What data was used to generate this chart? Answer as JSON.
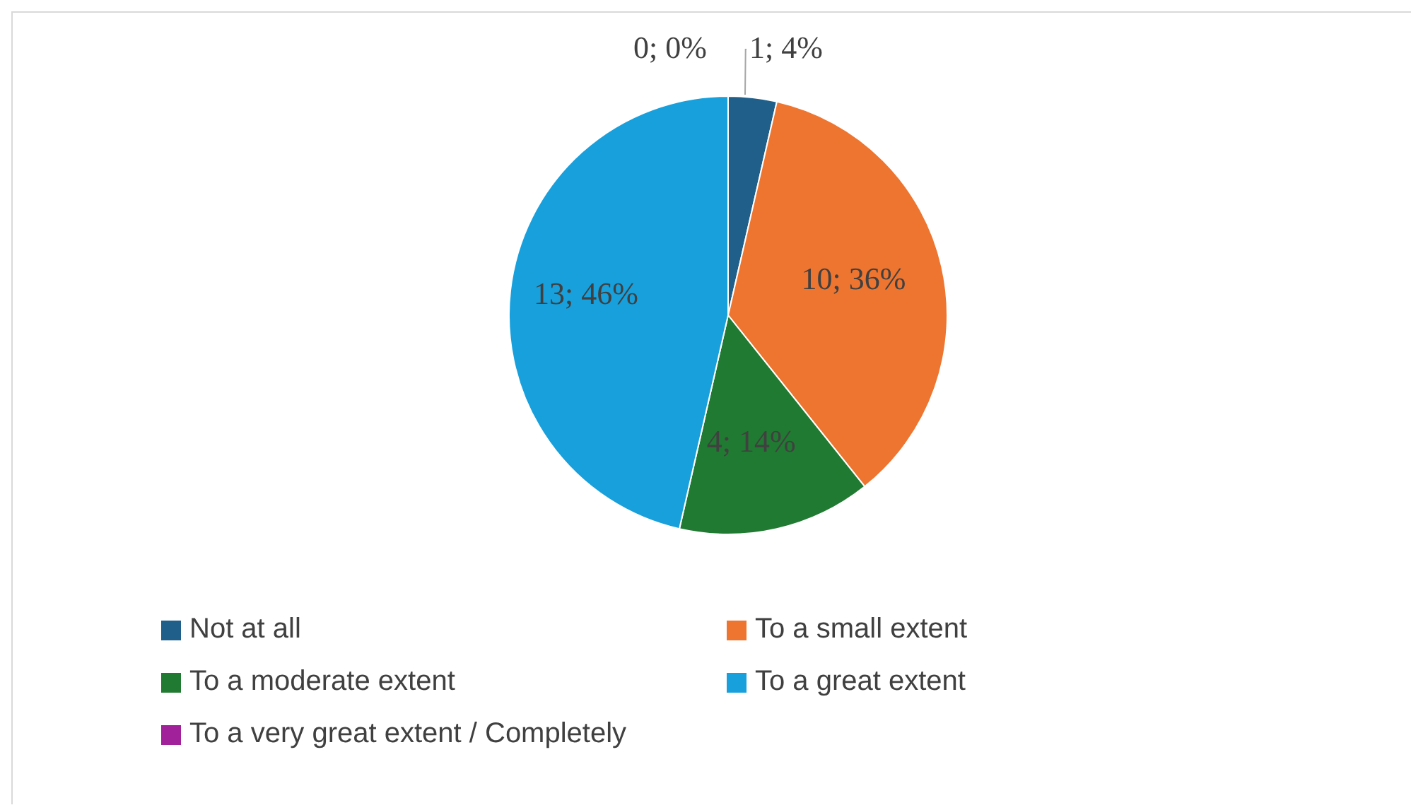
{
  "chart_data": {
    "type": "pie",
    "categories": [
      "Not at all",
      "To a small extent",
      "To a moderate extent",
      "To a great extent",
      "To a very great extent / Completely"
    ],
    "values": [
      1,
      10,
      4,
      13,
      0
    ],
    "colors": [
      "#1f5f8a",
      "#ee7530",
      "#217a32",
      "#17a0dc",
      "#a0219a"
    ],
    "value_labels": [
      "1; 4%",
      "10; 36%",
      "4; 14%",
      "13; 46%",
      "0; 0%"
    ],
    "legend": "bottom"
  }
}
